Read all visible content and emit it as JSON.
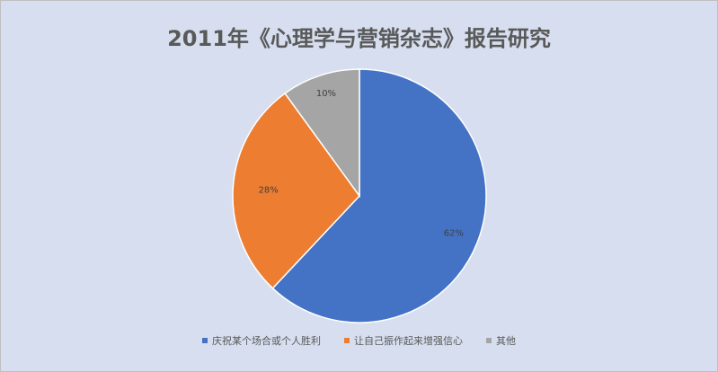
{
  "chart_data": {
    "type": "pie",
    "title": "2011年《心理学与营销杂志》报告研究",
    "categories": [
      "庆祝某个场合或个人胜利",
      "让自己振作起来增强信心",
      "其他"
    ],
    "values": [
      62,
      28,
      10
    ],
    "value_labels": [
      "62%",
      "28%",
      "10%"
    ],
    "colors": [
      "#4472c4",
      "#ed7d31",
      "#a5a5a5"
    ],
    "legend_position": "bottom",
    "start_angle_deg": 0,
    "direction": "clockwise"
  },
  "colors": {
    "background": "#d6deef",
    "title": "#595959",
    "slice_border": "#ffffff"
  }
}
